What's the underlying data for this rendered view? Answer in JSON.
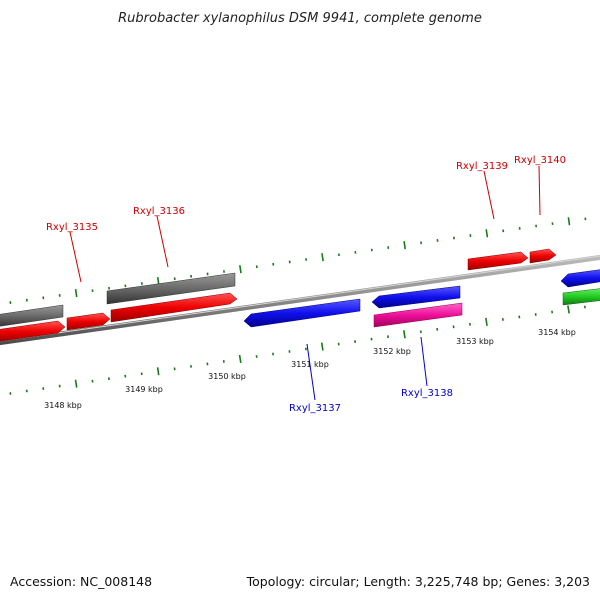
{
  "title": "Rubrobacter xylanophilus DSM 9941, complete genome",
  "footer": {
    "accession": "Accession: NC_008148",
    "stats": "Topology: circular; Length: 3,225,748 bp; Genes: 3,203"
  },
  "colors": {
    "backbone": "#8c8c8c",
    "tick": "#1a7a1a",
    "plus_label": "#cc0000",
    "minus_label": "#0000cc"
  },
  "scale_labels": [
    "3148 kbp",
    "3149 kbp",
    "3150 kbp",
    "3151 kbp",
    "3152 kbp",
    "3153 kbp",
    "3154 kbp"
  ],
  "gene_labels": [
    "Rxyl_3135",
    "Rxyl_3136",
    "Rxyl_3137",
    "Rxyl_3138",
    "Rxyl_3139",
    "Rxyl_3140"
  ],
  "genes": [
    {
      "id": "left-gray",
      "color": "#555555",
      "strand": "+"
    },
    {
      "id": "left-red",
      "color": "#dd0000",
      "strand": "+"
    },
    {
      "id": "Rxyl_3135",
      "color": "#dd0000",
      "strand": "+"
    },
    {
      "id": "Rxyl_3136-gray",
      "color": "#555555",
      "strand": "+"
    },
    {
      "id": "Rxyl_3136",
      "color": "#dd0000",
      "strand": "+"
    },
    {
      "id": "Rxyl_3137",
      "color": "#1010dd",
      "strand": "-"
    },
    {
      "id": "Rxyl_3138-blue",
      "color": "#1010dd",
      "strand": "-"
    },
    {
      "id": "Rxyl_3138",
      "color": "#ee1099",
      "strand": "+"
    },
    {
      "id": "Rxyl_3139",
      "color": "#dd0000",
      "strand": "+"
    },
    {
      "id": "Rxyl_3140",
      "color": "#dd0000",
      "strand": "+"
    },
    {
      "id": "right-blue",
      "color": "#1010dd",
      "strand": "-"
    },
    {
      "id": "right-green",
      "color": "#22bb22",
      "strand": "+"
    }
  ]
}
